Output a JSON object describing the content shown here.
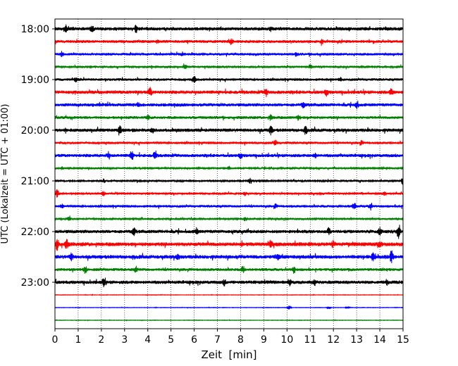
{
  "chart_data": {
    "type": "line",
    "title": "",
    "xlabel": "Zeit  [min]",
    "ylabel": "UTC (Lokalzeit = UTC + 01:00)",
    "xlim": [
      0,
      15
    ],
    "x_ticks": [
      "0",
      "1",
      "2",
      "3",
      "4",
      "5",
      "6",
      "7",
      "8",
      "9",
      "10",
      "11",
      "12",
      "13",
      "14",
      "15"
    ],
    "y_ticks": [
      "18:00",
      "19:00",
      "20:00",
      "21:00",
      "22:00",
      "23:00"
    ],
    "trace_interval_min": 15,
    "grid": "vertical-dotted",
    "colors": {
      "black": "#000000",
      "red": "#ff0000",
      "blue": "#0000ff",
      "green": "#008000"
    },
    "series": [
      {
        "start": "18:00",
        "color": "black",
        "amplitude": 0.3,
        "bursts": [
          [
            0.45,
            0.7
          ],
          [
            3.5,
            0.55
          ],
          [
            1.6,
            0.4
          ],
          [
            9.3,
            0.4
          ]
        ]
      },
      {
        "start": "18:15",
        "color": "red",
        "amplitude": 0.25,
        "bursts": [
          [
            7.6,
            0.45
          ],
          [
            4.4,
            0.3
          ],
          [
            11.5,
            0.3
          ]
        ]
      },
      {
        "start": "18:30",
        "color": "blue",
        "amplitude": 0.22,
        "bursts": [
          [
            0.3,
            0.4
          ],
          [
            5.5,
            0.3
          ],
          [
            10.4,
            0.3
          ]
        ]
      },
      {
        "start": "18:45",
        "color": "green",
        "amplitude": 0.2,
        "bursts": [
          [
            5.6,
            0.35
          ],
          [
            11.0,
            0.3
          ]
        ]
      },
      {
        "start": "19:00",
        "color": "black",
        "amplitude": 0.22,
        "bursts": [
          [
            6.0,
            0.5
          ],
          [
            0.9,
            0.3
          ],
          [
            12.3,
            0.3
          ]
        ]
      },
      {
        "start": "19:15",
        "color": "red",
        "amplitude": 0.3,
        "bursts": [
          [
            4.1,
            0.75
          ],
          [
            9.1,
            0.6
          ],
          [
            11.7,
            0.55
          ],
          [
            14.5,
            0.55
          ]
        ]
      },
      {
        "start": "19:30",
        "color": "blue",
        "amplitude": 0.28,
        "bursts": [
          [
            13.0,
            0.7
          ],
          [
            3.6,
            0.4
          ],
          [
            10.7,
            0.4
          ]
        ]
      },
      {
        "start": "19:45",
        "color": "green",
        "amplitude": 0.25,
        "bursts": [
          [
            4.0,
            0.45
          ],
          [
            9.3,
            0.45
          ],
          [
            10.5,
            0.4
          ]
        ]
      },
      {
        "start": "20:00",
        "color": "black",
        "amplitude": 0.3,
        "bursts": [
          [
            2.8,
            0.65
          ],
          [
            9.3,
            0.75
          ],
          [
            10.8,
            0.55
          ],
          [
            4.2,
            0.45
          ]
        ]
      },
      {
        "start": "20:15",
        "color": "red",
        "amplitude": 0.22,
        "bursts": [
          [
            9.5,
            0.45
          ],
          [
            13.2,
            0.3
          ]
        ]
      },
      {
        "start": "20:30",
        "color": "blue",
        "amplitude": 0.28,
        "bursts": [
          [
            3.3,
            0.75
          ],
          [
            2.3,
            0.5
          ],
          [
            4.3,
            0.55
          ],
          [
            8.0,
            0.45
          ],
          [
            11.2,
            0.4
          ]
        ]
      },
      {
        "start": "20:45",
        "color": "green",
        "amplitude": 0.18,
        "bursts": [
          [
            0.3,
            0.25
          ],
          [
            7.5,
            0.25
          ]
        ]
      },
      {
        "start": "21:00",
        "color": "black",
        "amplitude": 0.18,
        "bursts": [
          [
            15.0,
            0.9
          ],
          [
            8.4,
            0.4
          ],
          [
            2.1,
            0.3
          ]
        ]
      },
      {
        "start": "21:15",
        "color": "red",
        "amplitude": 0.18,
        "bursts": [
          [
            0.1,
            0.7
          ],
          [
            2.1,
            0.4
          ],
          [
            8.2,
            0.35
          ],
          [
            14.2,
            0.3
          ]
        ]
      },
      {
        "start": "21:30",
        "color": "blue",
        "amplitude": 0.22,
        "bursts": [
          [
            12.9,
            0.7
          ],
          [
            13.6,
            0.55
          ],
          [
            9.5,
            0.3
          ],
          [
            0.3,
            0.3
          ]
        ]
      },
      {
        "start": "21:45",
        "color": "green",
        "amplitude": 0.18,
        "bursts": [
          [
            0.6,
            0.3
          ],
          [
            8.2,
            0.3
          ]
        ]
      },
      {
        "start": "22:00",
        "color": "black",
        "amplitude": 0.3,
        "bursts": [
          [
            14.8,
            1.15
          ],
          [
            3.4,
            0.55
          ],
          [
            11.8,
            0.55
          ],
          [
            6.1,
            0.5
          ],
          [
            14.0,
            0.55
          ]
        ]
      },
      {
        "start": "22:15",
        "color": "red",
        "amplitude": 0.34,
        "bursts": [
          [
            0.1,
            1.0
          ],
          [
            0.5,
            0.7
          ],
          [
            9.3,
            0.6
          ],
          [
            14.0,
            0.55
          ],
          [
            12.0,
            0.5
          ]
        ]
      },
      {
        "start": "22:30",
        "color": "blue",
        "amplitude": 0.32,
        "bursts": [
          [
            14.5,
            1.0
          ],
          [
            0.7,
            0.55
          ],
          [
            5.3,
            0.5
          ],
          [
            13.7,
            0.55
          ],
          [
            9.6,
            0.45
          ]
        ]
      },
      {
        "start": "22:45",
        "color": "green",
        "amplitude": 0.25,
        "bursts": [
          [
            1.3,
            0.75
          ],
          [
            10.3,
            0.6
          ],
          [
            8.1,
            0.55
          ],
          [
            3.5,
            0.45
          ]
        ]
      },
      {
        "start": "23:00",
        "color": "black",
        "amplitude": 0.3,
        "bursts": [
          [
            2.1,
            0.8
          ],
          [
            10.1,
            0.6
          ],
          [
            7.3,
            0.45
          ],
          [
            14.3,
            0.45
          ],
          [
            11.2,
            0.4
          ]
        ]
      },
      {
        "start": "23:15",
        "color": "red",
        "amplitude": 0.04,
        "bursts": []
      },
      {
        "start": "23:30",
        "color": "blue",
        "amplitude": 0.04,
        "bursts": [
          [
            10.1,
            0.35
          ],
          [
            11.8,
            0.3
          ],
          [
            12.6,
            0.25
          ]
        ]
      },
      {
        "start": "23:45",
        "color": "green",
        "amplitude": 0.04,
        "bursts": []
      }
    ]
  }
}
